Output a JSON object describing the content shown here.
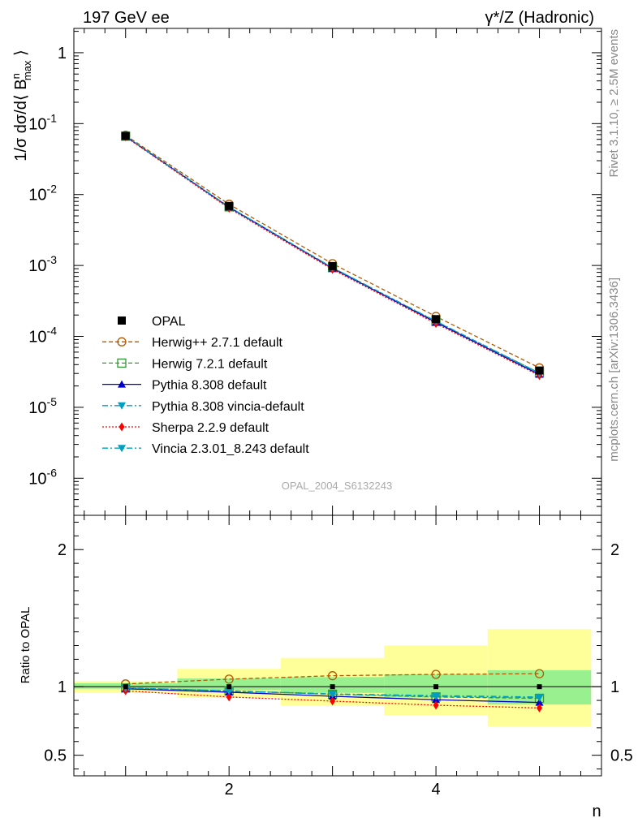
{
  "header": {
    "left": "197 GeV ee",
    "right": "γ*/Z (Hadronic)"
  },
  "side_labels": {
    "rivet": "Rivet 3.1.10, ≥ 2.5M events",
    "mcplots": "mcplots.cern.ch [arXiv:1306.3436]"
  },
  "watermark": "OPAL_2004_S6132243",
  "colors": {
    "band_inner": "#99f08f",
    "band_outer": "#ffff99"
  },
  "chart_data": [
    {
      "type": "line",
      "panel": "main",
      "ylabel": "1/σ dσ/d⟨ B^n_max ⟩",
      "yscale": "log",
      "xlim": [
        0.5,
        5.6
      ],
      "ylim": [
        3e-07,
        2.2
      ],
      "x": [
        1,
        2,
        3,
        4,
        5
      ],
      "ytick_labels": [
        "1",
        "10^-1",
        "10^-2",
        "10^-3",
        "10^-4",
        "10^-5",
        "10^-6"
      ],
      "legend_position": "lower-left",
      "series": [
        {
          "name": "OPAL",
          "marker": "square-filled",
          "color": "#000000",
          "style": "none",
          "values": [
            0.067,
            0.0069,
            0.00098,
            0.000175,
            3.3e-05
          ]
        },
        {
          "name": "Herwig++ 2.7.1 default",
          "marker": "circle-open",
          "color": "#b35900",
          "style": "dashed",
          "values": [
            0.0685,
            0.0073,
            0.00106,
            0.000191,
            3.6e-05
          ]
        },
        {
          "name": "Herwig 7.2.1 default",
          "marker": "square-open",
          "color": "#339933",
          "style": "dashed",
          "values": [
            0.0665,
            0.0067,
            0.00093,
            0.000162,
            3.05e-05
          ]
        },
        {
          "name": "Pythia 8.308 default",
          "marker": "triangle-up",
          "color": "#0000cc",
          "style": "solid",
          "values": [
            0.066,
            0.0066,
            0.00091,
            0.000158,
            2.9e-05
          ]
        },
        {
          "name": "Pythia 8.308 vincia-default",
          "marker": "triangle-down",
          "color": "#009ebf",
          "style": "dashdot",
          "values": [
            0.0665,
            0.0067,
            0.00093,
            0.000163,
            3.05e-05
          ]
        },
        {
          "name": "Sherpa 2.2.9 default",
          "marker": "diamond",
          "color": "#ff0000",
          "style": "dotted",
          "values": [
            0.065,
            0.0064,
            0.00088,
            0.000152,
            2.8e-05
          ]
        },
        {
          "name": "Vincia 2.3.01_8.243 default",
          "marker": "triangle-down",
          "color": "#009ebf",
          "style": "dashdot",
          "values": [
            0.0665,
            0.0067,
            0.00093,
            0.000164,
            3e-05
          ]
        }
      ]
    },
    {
      "type": "line",
      "panel": "ratio",
      "ylabel": "Ratio to OPAL",
      "xlabel": "n",
      "xlim": [
        0.5,
        5.6
      ],
      "ylim": [
        0.35,
        2.25
      ],
      "x": [
        1,
        2,
        3,
        4,
        5
      ],
      "xticks": [
        2,
        4
      ],
      "yticks": [
        0.5,
        1,
        2
      ],
      "ytick_labels": [
        "0.5",
        "1",
        "2"
      ],
      "bands": {
        "inner": [
          [
            0.985,
            1.025
          ],
          [
            0.975,
            1.06
          ],
          [
            0.955,
            1.07
          ],
          [
            0.92,
            1.09
          ],
          [
            0.87,
            1.12
          ]
        ],
        "outer": [
          [
            0.955,
            1.04
          ],
          [
            0.92,
            1.13
          ],
          [
            0.86,
            1.21
          ],
          [
            0.79,
            1.3
          ],
          [
            0.71,
            1.42
          ]
        ]
      },
      "series": [
        {
          "name": "Herwig++ 2.7.1 default",
          "values": [
            1.02,
            1.055,
            1.08,
            1.09,
            1.095
          ]
        },
        {
          "name": "Herwig 7.2.1 default",
          "values": [
            0.99,
            0.97,
            0.945,
            0.925,
            0.915
          ]
        },
        {
          "name": "Pythia 8.308 default",
          "values": [
            0.985,
            0.96,
            0.93,
            0.905,
            0.885
          ]
        },
        {
          "name": "Pythia 8.308 vincia-default",
          "values": [
            0.99,
            0.968,
            0.945,
            0.93,
            0.92
          ]
        },
        {
          "name": "Sherpa 2.2.9 default",
          "values": [
            0.97,
            0.925,
            0.895,
            0.865,
            0.845
          ]
        },
        {
          "name": "Vincia 2.3.01_8.243 default",
          "values": [
            0.99,
            0.97,
            0.948,
            0.935,
            0.925
          ]
        }
      ]
    }
  ]
}
